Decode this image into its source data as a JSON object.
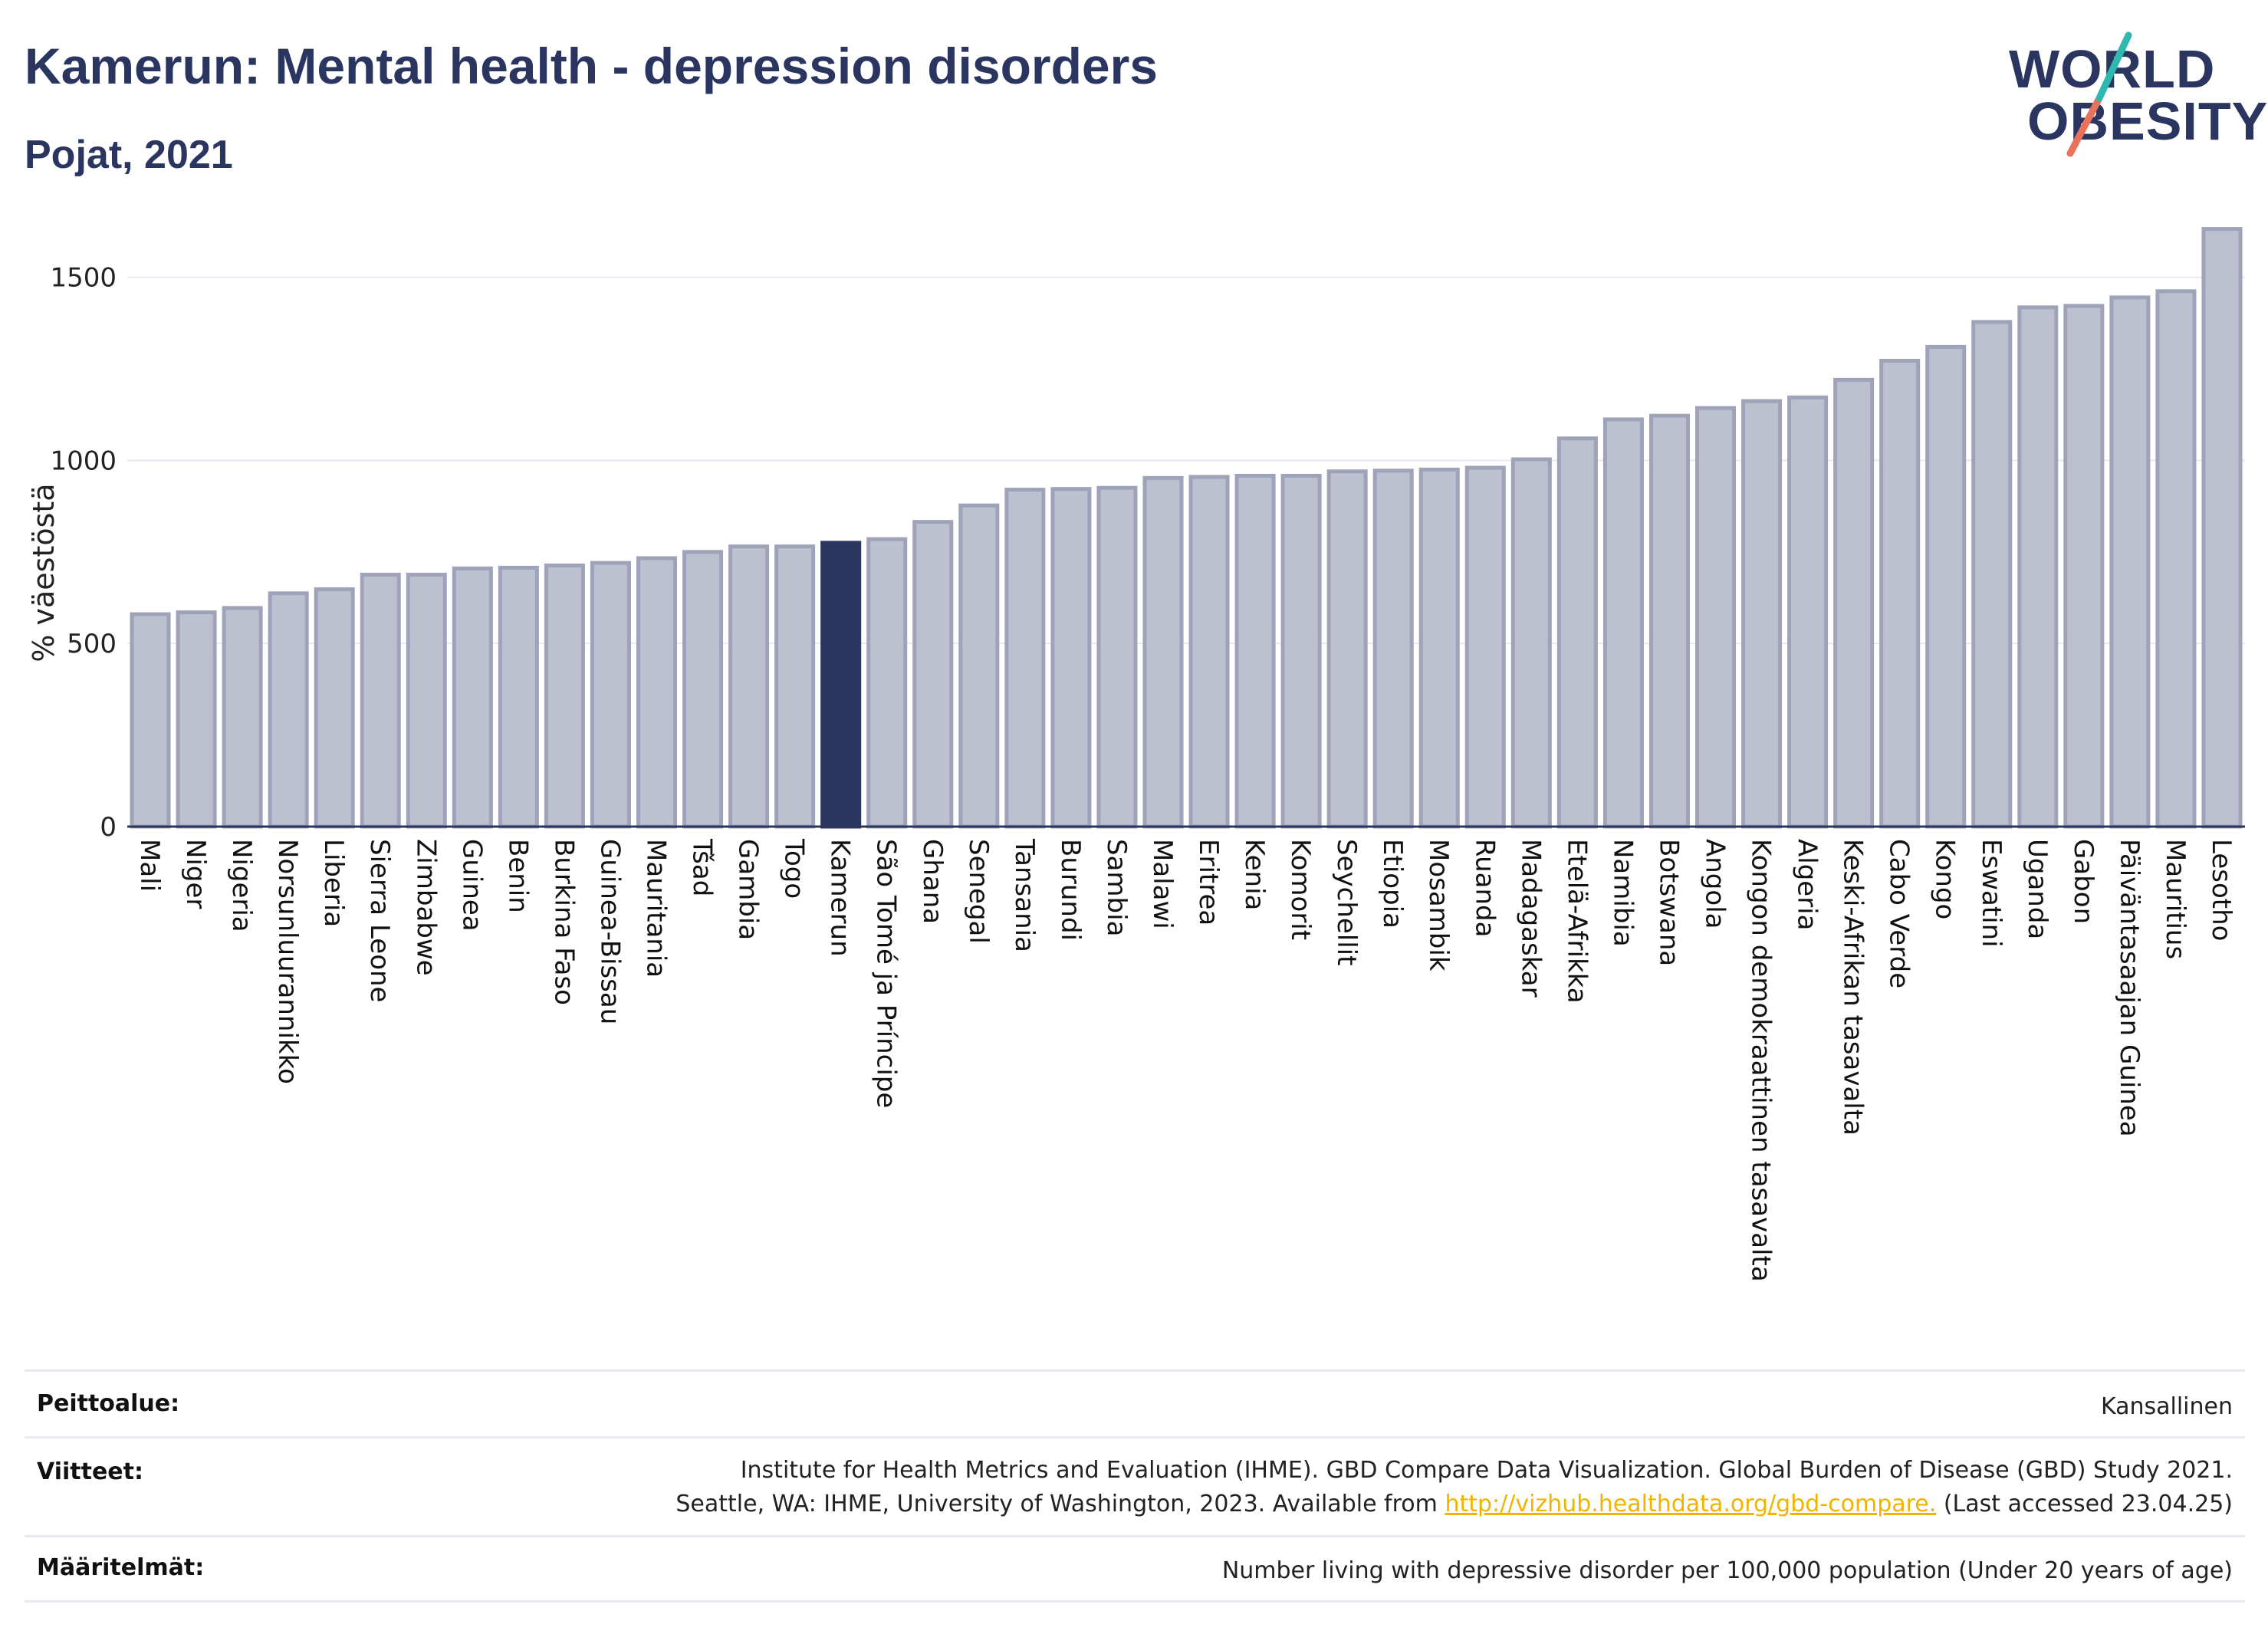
{
  "header": {
    "title": "Kamerun: Mental health - depression disorders",
    "subtitle": "Pojat, 2021"
  },
  "logo": {
    "line1": "WORLD",
    "line2": "OBESITY"
  },
  "colors": {
    "bar": "#bcc0cf",
    "bar_stroke": "#9ea3ba",
    "highlight": "#2a3560",
    "text": "#2a3560",
    "grid": "#e6e9f2",
    "logo_teal": "#2fb8b0",
    "logo_coral": "#e8735a"
  },
  "chart_data": {
    "type": "bar",
    "ylabel": "% väestöstä",
    "ylim": [
      0,
      1650
    ],
    "yticks": [
      0,
      500,
      1000,
      1500
    ],
    "grid": true,
    "highlight": "Kamerun",
    "categories": [
      "Mali",
      "Niger",
      "Nigeria",
      "Norsunluurannikko",
      "Liberia",
      "Sierra Leone",
      "Zimbabwe",
      "Guinea",
      "Benin",
      "Burkina Faso",
      "Guinea-Bissau",
      "Mauritania",
      "Tšad",
      "Gambia",
      "Togo",
      "Kamerun",
      "São Tomé ja Príncipe",
      "Ghana",
      "Senegal",
      "Tansania",
      "Burundi",
      "Sambia",
      "Malawi",
      "Eritrea",
      "Kenia",
      "Komorit",
      "Seychellit",
      "Etiopia",
      "Mosambik",
      "Ruanda",
      "Madagaskar",
      "Etelä-Afrikka",
      "Namibia",
      "Botswana",
      "Angola",
      "Kongon demokraattinen tasavalta",
      "Algeria",
      "Keski-Afrikan tasavalta",
      "Cabo Verde",
      "Kongo",
      "Eswatini",
      "Uganda",
      "Gabon",
      "Päiväntasaajan Guinea",
      "Mauritius",
      "Lesotho"
    ],
    "values": [
      580,
      585,
      597,
      637,
      648,
      688,
      688,
      705,
      707,
      713,
      720,
      733,
      750,
      765,
      765,
      775,
      785,
      832,
      877,
      920,
      922,
      925,
      952,
      955,
      958,
      958,
      970,
      972,
      975,
      980,
      1003,
      1060,
      1112,
      1122,
      1143,
      1162,
      1172,
      1220,
      1272,
      1310,
      1378,
      1418,
      1422,
      1445,
      1462,
      1632
    ]
  },
  "footer": {
    "coverage_label": "Peittoalue:",
    "coverage_value": "Kansallinen",
    "references_label": "Viitteet:",
    "references_line1": "Institute for Health Metrics and Evaluation (IHME). GBD Compare Data Visualization. Global Burden of Disease (GBD) Study 2021.",
    "references_line2_pre": "Seattle, WA: IHME, University of Washington, 2023. Available from",
    "references_link": "http://vizhub.healthdata.org/gbd-compare.",
    "references_line2_post": "(Last accessed 23.04.25)",
    "definitions_label": "Määritelmät:",
    "definitions_value": "Number living with depressive disorder per 100,000 population (Under 20 years of age)"
  }
}
